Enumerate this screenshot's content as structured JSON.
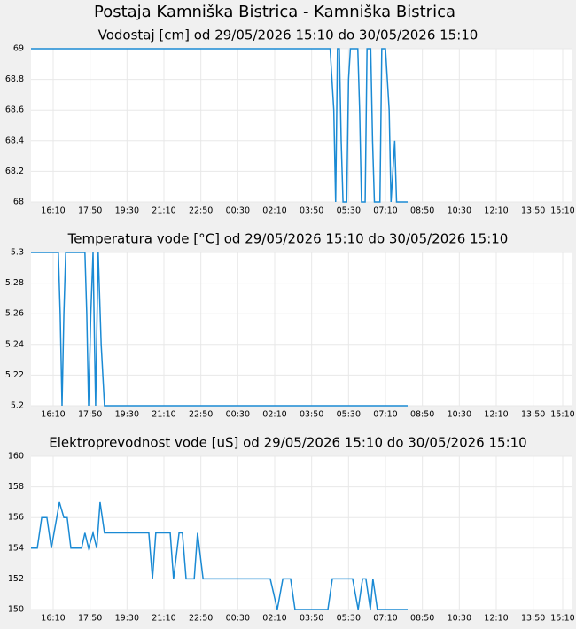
{
  "title": "Postaja Kamniška Bistrica - Kamniška Bistrica",
  "chart_data": [
    {
      "type": "line",
      "title": "Vodostaj [cm] od 29/05/2026 15:10 do 30/05/2026 15:10",
      "color": "#1a8ad4",
      "grid": true,
      "x": [
        0,
        810,
        820,
        825,
        830,
        835,
        840,
        845,
        855,
        860,
        865,
        885,
        890,
        895,
        905,
        910,
        920,
        925,
        930,
        945,
        950,
        960,
        970,
        975,
        985,
        990,
        995,
        1020
      ],
      "values": [
        69,
        69,
        68.6,
        68,
        69,
        69,
        68.4,
        68,
        68,
        68.8,
        69,
        69,
        68.6,
        68,
        68,
        69,
        69,
        68.4,
        68,
        68,
        69,
        69,
        68.6,
        68,
        68.4,
        68,
        68,
        68
      ],
      "xlim": [
        0,
        1464
      ],
      "ylim": [
        68,
        69
      ],
      "yticks": [
        68,
        68.2,
        68.4,
        68.6,
        68.8,
        69
      ],
      "xticks": [
        {
          "value": 60,
          "label": "16:10"
        },
        {
          "value": 160,
          "label": "17:50"
        },
        {
          "value": 260,
          "label": "19:30"
        },
        {
          "value": 360,
          "label": "21:10"
        },
        {
          "value": 460,
          "label": "22:50"
        },
        {
          "value": 560,
          "label": "00:30"
        },
        {
          "value": 660,
          "label": "02:10"
        },
        {
          "value": 760,
          "label": "03:50"
        },
        {
          "value": 860,
          "label": "05:30"
        },
        {
          "value": 960,
          "label": "07:10"
        },
        {
          "value": 1060,
          "label": "08:50"
        },
        {
          "value": 1160,
          "label": "10:30"
        },
        {
          "value": 1260,
          "label": "12:10"
        },
        {
          "value": 1360,
          "label": "13:50"
        },
        {
          "value": 1440,
          "label": "15:10"
        }
      ]
    },
    {
      "type": "line",
      "title": "Temperatura vode [°C] od 29/05/2026 15:10 do 30/05/2026 15:10",
      "color": "#1a8ad4",
      "grid": true,
      "x": [
        0,
        74,
        79,
        84,
        89,
        94,
        146,
        151,
        156,
        162,
        168,
        172,
        175,
        179,
        182,
        190,
        199,
        1020
      ],
      "values": [
        5.3,
        5.3,
        5.26,
        5.2,
        5.26,
        5.3,
        5.3,
        5.26,
        5.2,
        5.26,
        5.3,
        5.24,
        5.2,
        5.26,
        5.3,
        5.24,
        5.2,
        5.2
      ],
      "xlim": [
        0,
        1464
      ],
      "ylim": [
        5.2,
        5.3
      ],
      "yticks": [
        5.2,
        5.22,
        5.24,
        5.26,
        5.28,
        5.3
      ],
      "xticks": [
        {
          "value": 60,
          "label": "16:10"
        },
        {
          "value": 160,
          "label": "17:50"
        },
        {
          "value": 260,
          "label": "19:30"
        },
        {
          "value": 360,
          "label": "21:10"
        },
        {
          "value": 460,
          "label": "22:50"
        },
        {
          "value": 560,
          "label": "00:30"
        },
        {
          "value": 660,
          "label": "02:10"
        },
        {
          "value": 760,
          "label": "03:50"
        },
        {
          "value": 860,
          "label": "05:30"
        },
        {
          "value": 960,
          "label": "07:10"
        },
        {
          "value": 1060,
          "label": "08:50"
        },
        {
          "value": 1160,
          "label": "10:30"
        },
        {
          "value": 1260,
          "label": "12:10"
        },
        {
          "value": 1360,
          "label": "13:50"
        },
        {
          "value": 1440,
          "label": "15:10"
        }
      ]
    },
    {
      "type": "line",
      "title": "Elektroprevodnost vode [uS] od 29/05/2026 15:10 do 30/05/2026 15:10",
      "color": "#1a8ad4",
      "grid": true,
      "x": [
        0,
        17,
        29,
        43,
        55,
        77,
        89,
        98,
        108,
        137,
        146,
        156,
        168,
        178,
        187,
        199,
        319,
        329,
        338,
        377,
        386,
        401,
        410,
        420,
        442,
        451,
        466,
        648,
        667,
        682,
        703,
        715,
        804,
        816,
        871,
        886,
        898,
        907,
        919,
        926,
        938,
        1020
      ],
      "values": [
        154,
        154,
        156,
        156,
        154,
        157,
        156,
        156,
        154,
        154,
        155,
        154,
        155,
        154,
        157,
        155,
        155,
        152,
        155,
        155,
        152,
        155,
        155,
        152,
        152,
        155,
        152,
        152,
        150,
        152,
        152,
        150,
        150,
        152,
        152,
        150,
        152,
        152,
        150,
        152,
        150,
        150
      ],
      "xlim": [
        0,
        1464
      ],
      "ylim": [
        150,
        160
      ],
      "yticks": [
        150,
        152,
        154,
        156,
        158,
        160
      ],
      "xticks": [
        {
          "value": 60,
          "label": "16:10"
        },
        {
          "value": 160,
          "label": "17:50"
        },
        {
          "value": 260,
          "label": "19:30"
        },
        {
          "value": 360,
          "label": "21:10"
        },
        {
          "value": 460,
          "label": "22:50"
        },
        {
          "value": 560,
          "label": "00:30"
        },
        {
          "value": 660,
          "label": "02:10"
        },
        {
          "value": 760,
          "label": "03:50"
        },
        {
          "value": 860,
          "label": "05:30"
        },
        {
          "value": 960,
          "label": "07:10"
        },
        {
          "value": 1060,
          "label": "08:50"
        },
        {
          "value": 1160,
          "label": "10:30"
        },
        {
          "value": 1260,
          "label": "12:10"
        },
        {
          "value": 1360,
          "label": "13:50"
        },
        {
          "value": 1440,
          "label": "15:10"
        }
      ]
    }
  ]
}
